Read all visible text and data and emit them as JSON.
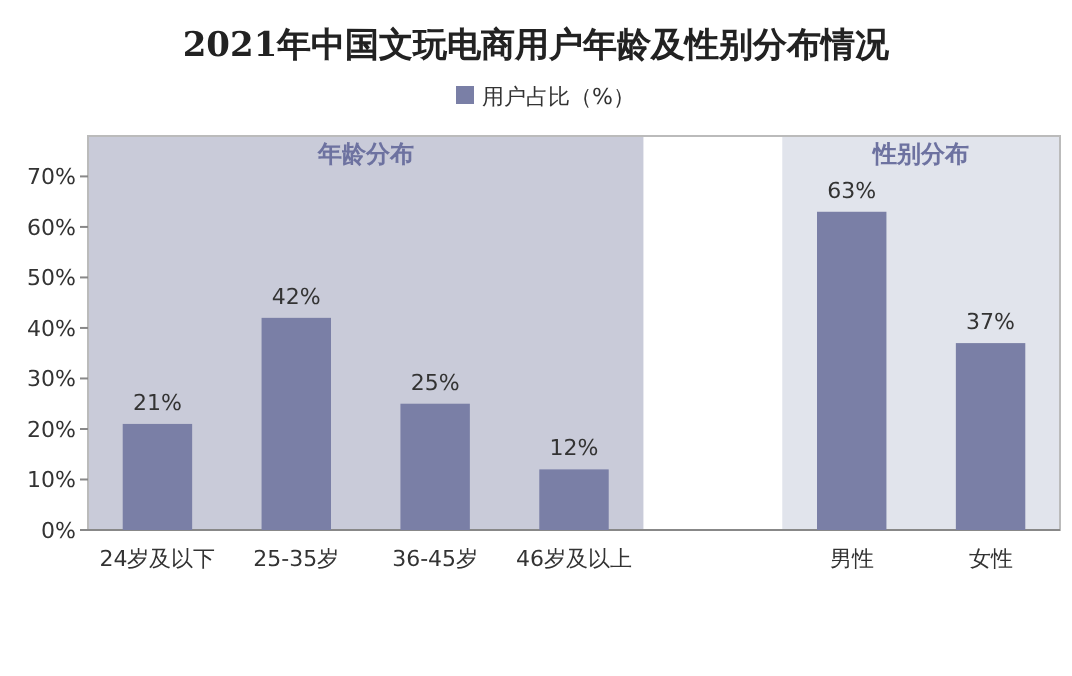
{
  "chart_data": {
    "type": "bar",
    "title": "2021年中国文玩电商用户年龄及性别分布情况",
    "categories": [
      "24岁及以下",
      "25-35岁",
      "36-45岁",
      "46岁及以上",
      null,
      "男性",
      "女性"
    ],
    "series": [
      {
        "name": "用户占比（%）",
        "color": "#7a7fa6",
        "values": [
          21,
          42,
          25,
          12,
          null,
          63,
          37
        ],
        "value_labels": [
          "21%",
          "42%",
          "25%",
          "12%",
          null,
          "63%",
          "37%"
        ]
      }
    ],
    "ylim": [
      0,
      78
    ],
    "yticks": [
      {
        "value": 0,
        "label": "0%"
      },
      {
        "value": 10,
        "label": "10%"
      },
      {
        "value": 20,
        "label": "20%"
      },
      {
        "value": 30,
        "label": "30%"
      },
      {
        "value": 40,
        "label": "40%"
      },
      {
        "value": 50,
        "label": "50%"
      },
      {
        "value": 60,
        "label": "60%"
      },
      {
        "value": 70,
        "label": "70%"
      }
    ],
    "bands": [
      {
        "axis": "x",
        "from": "24岁及以下",
        "to": "46岁及以上",
        "label": "年龄分布",
        "color": "#c9cbd9"
      },
      {
        "axis": "x",
        "from": "男性",
        "to": "女性",
        "label": "性别分布",
        "color": "#e1e4ec"
      }
    ],
    "legend": "top"
  }
}
